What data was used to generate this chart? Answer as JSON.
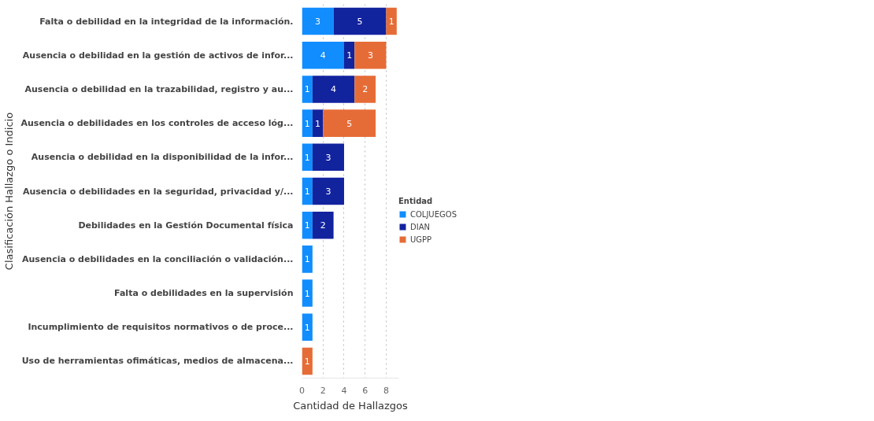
{
  "chart_data": {
    "type": "bar",
    "orientation": "horizontal",
    "stacked": true,
    "xlabel": "Cantidad de Hallazgos",
    "ylabel": "Clasificación Hallazgo o Indicio",
    "legend_title": "Entidad",
    "legend": "right",
    "grid": "x",
    "data_labels": true,
    "xlim": [
      0,
      9.2
    ],
    "xticks": [
      0,
      2,
      4,
      6,
      8
    ],
    "categories": [
      "Falta o debilidad en la integridad de la información.",
      "Ausencia o debilidad en la gestión de activos de infor...",
      "Ausencia o debilidad en la trazabilidad, registro y au...",
      "Ausencia o debilidades en los controles de acceso lóg...",
      "Ausencia o debilidad en la disponibilidad de la infor...",
      "Ausencia o debilidades en la seguridad, privacidad y/...",
      "Debilidades en la Gestión Documental física",
      "Ausencia o debilidades en la conciliación o validación...",
      "Falta o debilidades en la supervisión",
      "Incumplimiento de requisitos normativos o de proce...",
      "Uso de herramientas ofimáticas, medios de almacena..."
    ],
    "series": [
      {
        "name": "COLJUEGOS",
        "color": "#118dff",
        "values": [
          3,
          4,
          1,
          1,
          1,
          1,
          1,
          1,
          1,
          1,
          null
        ]
      },
      {
        "name": "DIAN",
        "color": "#12239e",
        "values": [
          5,
          1,
          4,
          1,
          3,
          3,
          2,
          null,
          null,
          null,
          null
        ]
      },
      {
        "name": "UGPP",
        "color": "#e66c37",
        "values": [
          1,
          3,
          2,
          5,
          null,
          null,
          null,
          null,
          null,
          null,
          1
        ]
      }
    ]
  }
}
